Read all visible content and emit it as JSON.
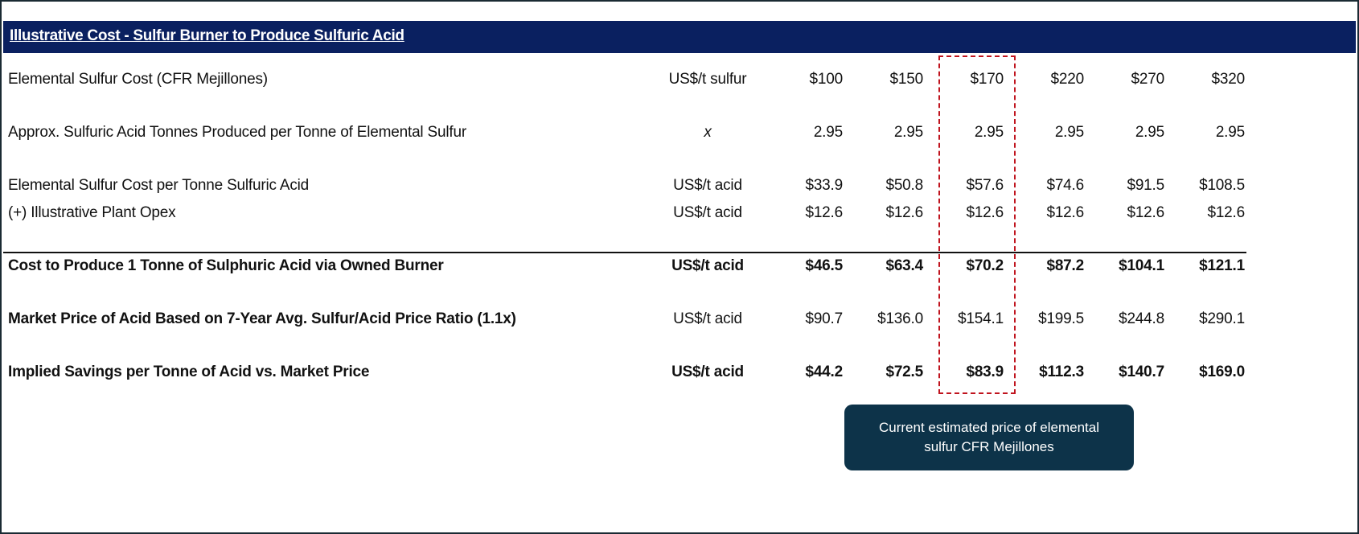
{
  "title": "Illustrative Cost - Sulfur Burner to Produce Sulfuric Acid",
  "rows": [
    {
      "label": "Elemental Sulfur Cost (CFR Mejillones)",
      "unit": "US$/t sulfur",
      "values": [
        "$100",
        "$150",
        "$170",
        "$220",
        "$270",
        "$320"
      ]
    },
    {
      "label": "Approx. Sulfuric Acid Tonnes Produced per Tonne of Elemental Sulfur",
      "unit": "x",
      "values": [
        "2.95",
        "2.95",
        "2.95",
        "2.95",
        "2.95",
        "2.95"
      ]
    },
    {
      "label": "Elemental Sulfur Cost per Tonne Sulfuric Acid",
      "unit": "US$/t acid",
      "values": [
        "$33.9",
        "$50.8",
        "$57.6",
        "$74.6",
        "$91.5",
        "$108.5"
      ]
    },
    {
      "label": "(+) Illustrative Plant Opex",
      "unit": "US$/t acid",
      "values": [
        "$12.6",
        "$12.6",
        "$12.6",
        "$12.6",
        "$12.6",
        "$12.6"
      ]
    },
    {
      "label": "Cost to Produce 1 Tonne of Sulphuric Acid via Owned Burner",
      "unit": "US$/t acid",
      "values": [
        "$46.5",
        "$63.4",
        "$70.2",
        "$87.2",
        "$104.1",
        "$121.1"
      ]
    },
    {
      "label": "Market Price of Acid Based on 7-Year Avg. Sulfur/Acid Price Ratio (1.1x)",
      "unit": "US$/t acid",
      "values": [
        "$90.7",
        "$136.0",
        "$154.1",
        "$199.5",
        "$244.8",
        "$290.1"
      ]
    },
    {
      "label": "Implied Savings per Tonne of Acid vs. Market Price",
      "unit": "US$/t acid",
      "values": [
        "$44.2",
        "$72.5",
        "$83.9",
        "$112.3",
        "$140.7",
        "$169.0"
      ]
    }
  ],
  "highlighted_column": 2,
  "callout": "Current estimated price of elemental sulfur CFR Mejillones",
  "colors": {
    "header": "#0a2060",
    "highlight": "#c0141e",
    "callout": "#0d3349"
  }
}
